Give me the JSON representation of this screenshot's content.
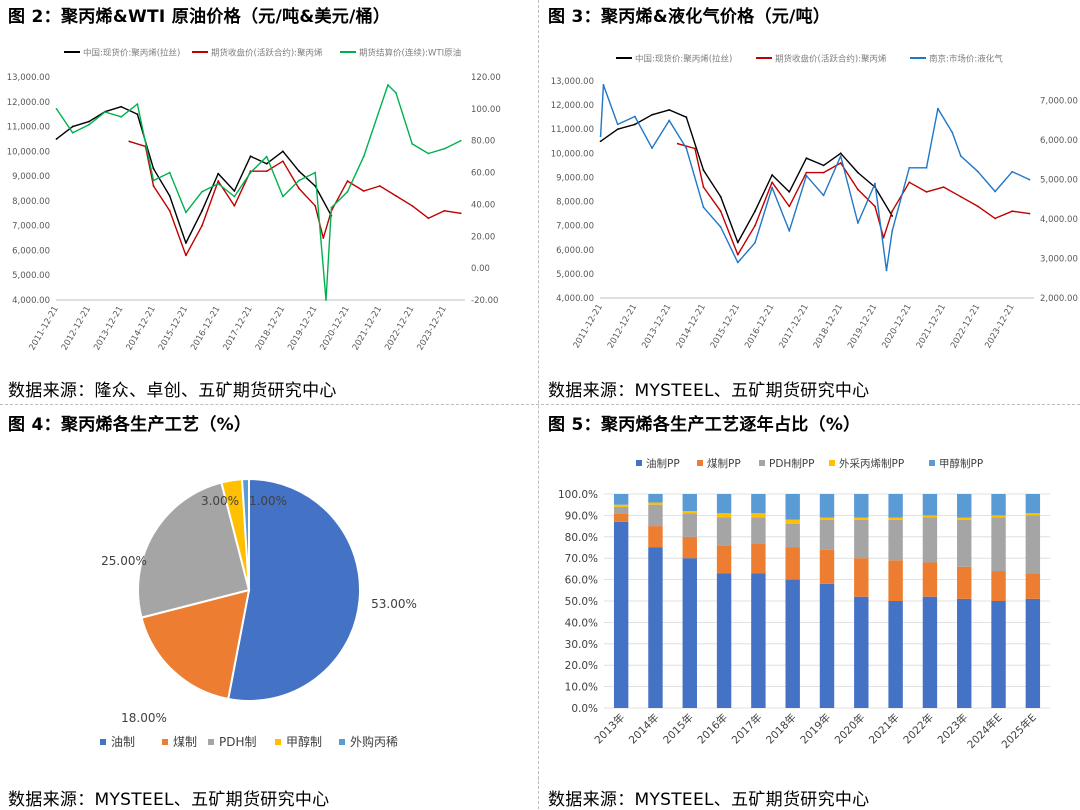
{
  "fig2": {
    "title": "图 2：聚丙烯&WTI 原油价格（元/吨&美元/桶）",
    "source": "数据来源：隆众、卓创、五矿期货研究中心"
  },
  "fig3": {
    "title": "图 3：聚丙烯&液化气价格（元/吨）",
    "source": "数据来源：MYSTEEL、五矿期货研究中心"
  },
  "fig4": {
    "title": "图 4：聚丙烯各生产工艺（%）",
    "source": "数据来源：MYSTEEL、五矿期货研究中心"
  },
  "fig5": {
    "title": "图 5：聚丙烯各生产工艺逐年占比（%）",
    "source": "数据来源：MYSTEEL、五矿期货研究中心"
  },
  "chart_data": [
    {
      "id": "fig2",
      "type": "line",
      "x_tick_labels": [
        "2011-12-21",
        "2012-12-21",
        "2013-12-21",
        "2014-12-21",
        "2015-12-21",
        "2016-12-21",
        "2017-12-21",
        "2018-12-21",
        "2019-12-21",
        "2020-12-21",
        "2021-12-21",
        "2022-12-21",
        "2023-12-21"
      ],
      "y_left": {
        "ylim": [
          4000,
          13000
        ],
        "tick_labels": [
          "4,000.00",
          "5,000.00",
          "6,000.00",
          "7,000.00",
          "8,000.00",
          "9,000.00",
          "10,000.00",
          "11,000.00",
          "12,000.00",
          "13,000.00"
        ]
      },
      "y_right": {
        "ylim": [
          -20,
          120
        ],
        "tick_labels": [
          "-20.00",
          "0.00",
          "20.00",
          "40.00",
          "60.00",
          "80.00",
          "100.00",
          "120.00"
        ]
      },
      "legend_position": "top",
      "series": [
        {
          "name": "中国:现货价:聚丙烯(拉丝)",
          "color": "#000000",
          "axis": "left",
          "x": [
            "2011-12",
            "2012-06",
            "2012-12",
            "2013-06",
            "2013-12",
            "2014-06",
            "2014-12",
            "2015-06",
            "2015-12",
            "2016-06",
            "2016-12",
            "2017-06",
            "2017-12",
            "2018-06",
            "2018-12",
            "2019-06",
            "2019-12",
            "2020-06"
          ],
          "y": [
            10500,
            11000,
            11200,
            11600,
            11800,
            11500,
            9300,
            8200,
            6300,
            7600,
            9100,
            8400,
            9800,
            9500,
            10000,
            9200,
            8600,
            7400
          ]
        },
        {
          "name": "期货收盘价(活跃合约):聚丙烯",
          "color": "#c00000",
          "axis": "left",
          "x": [
            "2014-03",
            "2014-09",
            "2014-12",
            "2015-06",
            "2015-12",
            "2016-06",
            "2016-12",
            "2017-06",
            "2017-12",
            "2018-06",
            "2018-12",
            "2019-06",
            "2019-12",
            "2020-03",
            "2020-06",
            "2020-12",
            "2021-06",
            "2021-12",
            "2022-06",
            "2022-12",
            "2023-06",
            "2023-12",
            "2024-06"
          ],
          "y": [
            10400,
            10200,
            8600,
            7600,
            5800,
            7000,
            8800,
            7800,
            9200,
            9200,
            9600,
            8500,
            7800,
            6500,
            7600,
            8800,
            8400,
            8600,
            8200,
            7800,
            7300,
            7600,
            7500
          ]
        },
        {
          "name": "期货结算价(连续):WTI原油",
          "color": "#00b050",
          "axis": "right",
          "x": [
            "2011-12",
            "2012-06",
            "2012-12",
            "2013-06",
            "2013-12",
            "2014-06",
            "2014-12",
            "2015-06",
            "2015-12",
            "2016-06",
            "2016-12",
            "2017-06",
            "2017-12",
            "2018-06",
            "2018-12",
            "2019-06",
            "2019-12",
            "2020-04",
            "2020-06",
            "2020-12",
            "2021-06",
            "2022-03",
            "2022-06",
            "2022-12",
            "2023-06",
            "2023-12",
            "2024-06"
          ],
          "y": [
            100,
            85,
            90,
            98,
            95,
            103,
            55,
            60,
            35,
            48,
            53,
            45,
            60,
            70,
            45,
            55,
            60,
            -20,
            38,
            48,
            70,
            115,
            110,
            78,
            72,
            75,
            80
          ]
        }
      ]
    },
    {
      "id": "fig3",
      "type": "line",
      "x_tick_labels": [
        "2011-12-21",
        "2012-12-21",
        "2013-12-21",
        "2014-12-21",
        "2015-12-21",
        "2016-12-21",
        "2017-12-21",
        "2018-12-21",
        "2019-12-21",
        "2020-12-21",
        "2021-12-21",
        "2022-12-21",
        "2023-12-21"
      ],
      "y_left": {
        "ylim": [
          4000,
          13000
        ],
        "tick_labels": [
          "4,000.00",
          "5,000.00",
          "6,000.00",
          "7,000.00",
          "8,000.00",
          "9,000.00",
          "10,000.00",
          "11,000.00",
          "12,000.00",
          "13,000.00"
        ]
      },
      "y_right": {
        "ylim": [
          2000,
          7500
        ],
        "tick_labels": [
          "2,000.00",
          "3,000.00",
          "4,000.00",
          "5,000.00",
          "6,000.00",
          "7,000.00"
        ]
      },
      "legend_position": "top",
      "series": [
        {
          "name": "中国:现货价:聚丙烯(拉丝)",
          "color": "#000000",
          "axis": "left",
          "x": [
            "2011-12",
            "2012-06",
            "2012-12",
            "2013-06",
            "2013-12",
            "2014-06",
            "2014-12",
            "2015-06",
            "2015-12",
            "2016-06",
            "2016-12",
            "2017-06",
            "2017-12",
            "2018-06",
            "2018-12",
            "2019-06",
            "2019-12",
            "2020-06"
          ],
          "y": [
            10500,
            11000,
            11200,
            11600,
            11800,
            11500,
            9300,
            8200,
            6300,
            7600,
            9100,
            8400,
            9800,
            9500,
            10000,
            9200,
            8600,
            7400
          ]
        },
        {
          "name": "期货收盘价(活跃合约):聚丙烯",
          "color": "#c00000",
          "axis": "left",
          "x": [
            "2014-03",
            "2014-09",
            "2014-12",
            "2015-06",
            "2015-12",
            "2016-06",
            "2016-12",
            "2017-06",
            "2017-12",
            "2018-06",
            "2018-12",
            "2019-06",
            "2019-12",
            "2020-03",
            "2020-06",
            "2020-12",
            "2021-06",
            "2021-12",
            "2022-06",
            "2022-12",
            "2023-06",
            "2023-12",
            "2024-06"
          ],
          "y": [
            10400,
            10200,
            8600,
            7600,
            5800,
            7000,
            8800,
            7800,
            9200,
            9200,
            9600,
            8500,
            7800,
            6500,
            7600,
            8800,
            8400,
            8600,
            8200,
            7800,
            7300,
            7600,
            7500
          ]
        },
        {
          "name": "南京:市场价:液化气",
          "color": "#1f77c8",
          "axis": "right",
          "x": [
            "2011-12",
            "2012-01",
            "2012-06",
            "2012-12",
            "2013-06",
            "2013-12",
            "2014-06",
            "2014-12",
            "2015-06",
            "2015-12",
            "2016-06",
            "2016-12",
            "2017-06",
            "2017-12",
            "2018-06",
            "2018-12",
            "2019-06",
            "2019-12",
            "2020-04",
            "2020-06",
            "2020-12",
            "2021-06",
            "2021-10",
            "2022-03",
            "2022-06",
            "2022-12",
            "2023-06",
            "2023-12",
            "2024-06"
          ],
          "y": [
            6100,
            7400,
            6400,
            6600,
            5800,
            6500,
            5800,
            4300,
            3800,
            2900,
            3400,
            4800,
            3700,
            5100,
            4600,
            5600,
            3900,
            4900,
            2700,
            3700,
            5300,
            5300,
            6800,
            6200,
            5600,
            5200,
            4700,
            5200,
            5000
          ]
        }
      ]
    },
    {
      "id": "fig4",
      "type": "pie",
      "categories": [
        "油制",
        "煤制",
        "PDH制",
        "甲醇制",
        "外购丙稀"
      ],
      "values": [
        53,
        18,
        25,
        3,
        1
      ],
      "data_labels": [
        "53.00%",
        "18.00%",
        "25.00%",
        "3.00%",
        "1.00%"
      ],
      "colors": [
        "#4472c4",
        "#ed7d31",
        "#a5a5a5",
        "#ffc000",
        "#5b9bd5"
      ],
      "legend_position": "bottom"
    },
    {
      "id": "fig5",
      "type": "bar",
      "stacked": true,
      "categories": [
        "2013年",
        "2014年",
        "2015年",
        "2016年",
        "2017年",
        "2018年",
        "2019年",
        "2020年",
        "2021年",
        "2022年",
        "2023年",
        "2024年E",
        "2025年E"
      ],
      "ylim": [
        0,
        100
      ],
      "y_tick_labels": [
        "0.0%",
        "10.0%",
        "20.0%",
        "30.0%",
        "40.0%",
        "50.0%",
        "60.0%",
        "70.0%",
        "80.0%",
        "90.0%",
        "100.0%"
      ],
      "legend_position": "top",
      "series": [
        {
          "name": "油制PP",
          "color": "#4472c4",
          "values": [
            87,
            75,
            70,
            63,
            63,
            60,
            58,
            52,
            50,
            52,
            51,
            50,
            51
          ]
        },
        {
          "name": "煤制PP",
          "color": "#ed7d31",
          "values": [
            4,
            10,
            10,
            13,
            14,
            15,
            16,
            18,
            19,
            16,
            15,
            14,
            12
          ]
        },
        {
          "name": "PDH制PP",
          "color": "#a5a5a5",
          "values": [
            3,
            10,
            11,
            13,
            12,
            11,
            14,
            18,
            19,
            21,
            22,
            25,
            27
          ]
        },
        {
          "name": "外采丙烯制PP",
          "color": "#ffc000",
          "values": [
            1,
            1,
            1,
            2,
            2,
            2,
            1,
            1,
            1,
            1,
            1,
            1,
            1
          ]
        },
        {
          "name": "甲醇制PP",
          "color": "#5b9bd5",
          "values": [
            5,
            4,
            8,
            9,
            9,
            12,
            11,
            11,
            11,
            10,
            11,
            10,
            9
          ]
        }
      ]
    }
  ]
}
